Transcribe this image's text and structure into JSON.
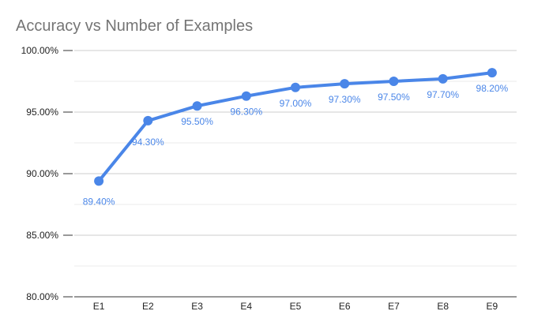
{
  "chart_data": {
    "type": "line",
    "title": "Accuracy vs Number of Examples",
    "xlabel": "",
    "ylabel": "",
    "categories": [
      "E1",
      "E2",
      "E3",
      "E4",
      "E5",
      "E6",
      "E7",
      "E8",
      "E9"
    ],
    "series": [
      {
        "values": [
          89.4,
          94.3,
          95.5,
          96.3,
          97.0,
          97.3,
          97.5,
          97.7,
          98.2
        ],
        "labels": [
          "89.40%",
          "94.30%",
          "95.50%",
          "96.30%",
          "97.00%",
          "97.30%",
          "97.50%",
          "97.70%",
          "98.20%"
        ],
        "color": "#4a86e8"
      }
    ],
    "ylim": [
      80,
      100
    ],
    "yticks": [
      "80.00%",
      "85.00%",
      "90.00%",
      "95.00%",
      "100.00%"
    ],
    "grid": true,
    "legend": "none"
  }
}
